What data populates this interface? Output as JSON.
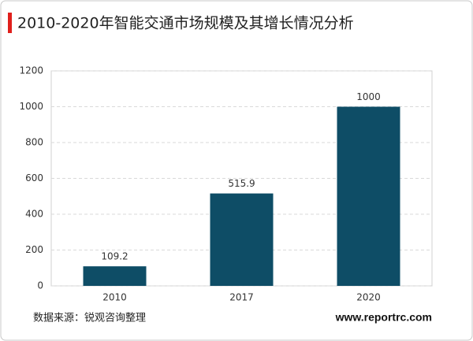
{
  "chart_data": {
    "type": "bar",
    "title": "2010-2020年智能交通市场规模及其增长情况分析",
    "categories": [
      "2010",
      "2017",
      "2020"
    ],
    "values": [
      109.2,
      515.9,
      1000
    ],
    "color": "#0e4d66",
    "ylim": [
      0,
      1200
    ],
    "yticks": [
      0,
      200,
      400,
      600,
      800,
      1000,
      1200
    ],
    "grid": true,
    "source": "数据来源：锐观咨询整理",
    "website": "www.reportrc.com"
  }
}
